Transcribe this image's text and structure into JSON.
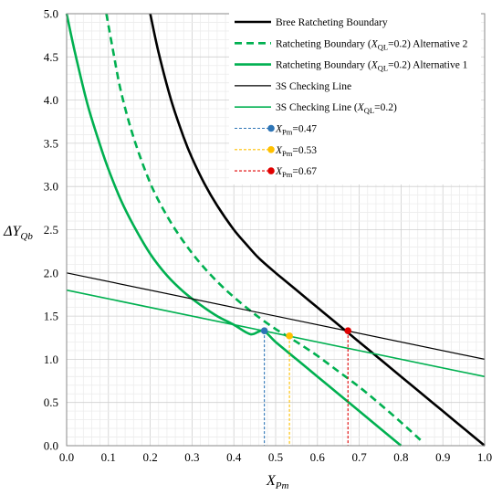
{
  "chart_data": {
    "type": "line",
    "xlabel": "X",
    "xlabel_sub": "Pm",
    "ylabel": "ΔY",
    "ylabel_sub": "Qb",
    "xlim": [
      0.0,
      1.0
    ],
    "ylim": [
      0.0,
      5.0
    ],
    "x_ticks": [
      "0.0",
      "0.1",
      "0.2",
      "0.3",
      "0.4",
      "0.5",
      "0.6",
      "0.7",
      "0.8",
      "0.9",
      "1.0"
    ],
    "y_ticks": [
      "0.0",
      "0.5",
      "1.0",
      "1.5",
      "2.0",
      "2.5",
      "3.0",
      "3.5",
      "4.0",
      "4.5",
      "5.0"
    ],
    "grid": true,
    "legend_position": "top-right",
    "series": [
      {
        "name": "Bree Ratcheting Boundary",
        "color": "#000000",
        "width": 2.6,
        "dash": "solid",
        "x": [
          0.2,
          0.22,
          0.25,
          0.28,
          0.3,
          0.33,
          0.36,
          0.4,
          0.43,
          0.46,
          0.5,
          0.52,
          0.56,
          0.6,
          0.64,
          0.66,
          0.68,
          0.7,
          0.72,
          0.74,
          0.76,
          0.78,
          0.8,
          0.85,
          0.9,
          0.95,
          1.0
        ],
        "y": [
          5.0,
          4.55,
          4.0,
          3.57,
          3.33,
          3.03,
          2.78,
          2.5,
          2.33,
          2.17,
          2.0,
          1.92,
          1.76,
          1.6,
          1.44,
          1.36,
          1.28,
          1.2,
          1.12,
          1.04,
          0.96,
          0.88,
          0.8,
          0.6,
          0.4,
          0.2,
          0.0
        ]
      },
      {
        "name": "Ratcheting Boundary (X_QL=0.2) Alternative 2",
        "label_parts": [
          "Ratcheting Boundary (",
          "X",
          "QL",
          "=0.2)  Alternative 2"
        ],
        "color": "#00b050",
        "width": 2.6,
        "dash": "dashed",
        "x": [
          0.095,
          0.11,
          0.13,
          0.16,
          0.2,
          0.24,
          0.28,
          0.32,
          0.36,
          0.4,
          0.44,
          0.47,
          0.5,
          0.53,
          0.56,
          0.6,
          0.65,
          0.7,
          0.75,
          0.8,
          0.85
        ],
        "y": [
          5.0,
          4.6,
          4.1,
          3.57,
          3.04,
          2.66,
          2.36,
          2.11,
          1.9,
          1.72,
          1.56,
          1.45,
          1.35,
          1.26,
          1.17,
          1.04,
          0.86,
          0.68,
          0.48,
          0.27,
          0.05
        ]
      },
      {
        "name": "Ratcheting Boundary (X_QL=0.2) Alternative 1",
        "label_parts": [
          "Ratcheting Boundary (",
          "X",
          "QL",
          "=0.2)  Alternative 1"
        ],
        "color": "#00b050",
        "width": 2.6,
        "dash": "solid",
        "x": [
          0.0,
          0.02,
          0.05,
          0.08,
          0.1,
          0.13,
          0.16,
          0.2,
          0.24,
          0.28,
          0.32,
          0.36,
          0.4,
          0.44,
          0.47,
          0.5,
          0.55,
          0.6,
          0.65,
          0.7,
          0.75,
          0.8
        ],
        "y": [
          5.0,
          4.55,
          3.95,
          3.48,
          3.2,
          2.84,
          2.55,
          2.22,
          1.97,
          1.78,
          1.63,
          1.5,
          1.4,
          1.29,
          1.33,
          1.2,
          1.0,
          0.8,
          0.6,
          0.4,
          0.2,
          0.0
        ]
      },
      {
        "name": "3S Checking Line",
        "color": "#000000",
        "width": 1.2,
        "dash": "solid",
        "x": [
          0.0,
          1.0
        ],
        "y": [
          2.0,
          1.0
        ]
      },
      {
        "name": "3S Checking Line (X_QL=0.2)",
        "label_parts": [
          "3S Checking Line (",
          "X",
          "QL",
          "=0.2)"
        ],
        "color": "#00b050",
        "width": 1.6,
        "dash": "solid",
        "x": [
          0.0,
          1.0
        ],
        "y": [
          1.8,
          0.8
        ]
      }
    ],
    "markers": [
      {
        "name": "X_Pm=0.47",
        "label_parts": [
          "",
          "X",
          "Pm",
          "=0.47"
        ],
        "x": 0.473,
        "y": 1.33,
        "color": "#2e75b6"
      },
      {
        "name": "X_Pm=0.53",
        "label_parts": [
          "",
          "X",
          "Pm",
          "=0.53"
        ],
        "x": 0.533,
        "y": 1.27,
        "color": "#ffc000"
      },
      {
        "name": "X_Pm=0.67",
        "label_parts": [
          "",
          "X",
          "Pm",
          "=0.67"
        ],
        "x": 0.673,
        "y": 1.33,
        "color": "#e00000"
      }
    ]
  }
}
